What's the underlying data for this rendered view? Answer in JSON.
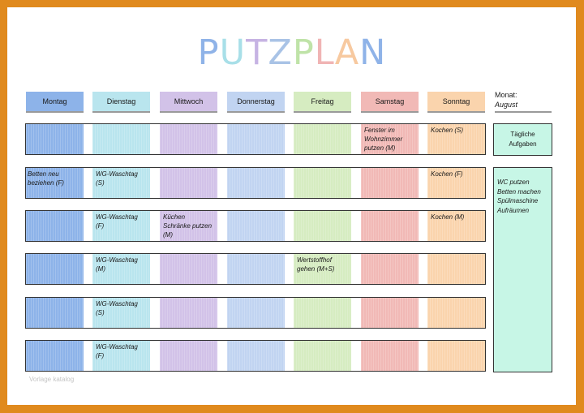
{
  "title": {
    "letters": [
      {
        "ch": "P",
        "color": "#8fb3e8"
      },
      {
        "ch": "U",
        "color": "#a8dfe8"
      },
      {
        "ch": "T",
        "color": "#c6b3e3"
      },
      {
        "ch": "Z",
        "color": "#a9c3e6"
      },
      {
        "ch": "P",
        "color": "#bfe3a8"
      },
      {
        "ch": "L",
        "color": "#f0b4b4"
      },
      {
        "ch": "A",
        "color": "#f7c9a0"
      },
      {
        "ch": "N",
        "color": "#8fb3e8"
      }
    ]
  },
  "days": [
    {
      "label": "Montag",
      "color": "#8db3e9"
    },
    {
      "label": "Dienstag",
      "color": "#b9e5ee"
    },
    {
      "label": "Mittwoch",
      "color": "#d2c2e8"
    },
    {
      "label": "Donnerstag",
      "color": "#c1d4f1"
    },
    {
      "label": "Freitag",
      "color": "#d6ecc1"
    },
    {
      "label": "Samstag",
      "color": "#f1b9b6"
    },
    {
      "label": "Sonntag",
      "color": "#fad4ad"
    }
  ],
  "month": {
    "label": "Monat:",
    "value": "August"
  },
  "rows": [
    {
      "tasks": [
        "",
        "",
        "",
        "",
        "",
        "Fenster im\nWohnzimmer\nputzen (M)",
        "Kochen (S)"
      ]
    },
    {
      "tasks": [
        "Betten neu\nbeziehen (F)",
        "WG-Waschtag\n(S)",
        "",
        "",
        "",
        "",
        "Kochen (F)"
      ]
    },
    {
      "tasks": [
        "",
        "WG-Waschtag\n(F)",
        "Küchen\nSchränke putzen\n(M)",
        "",
        "",
        "",
        "Kochen (M)"
      ]
    },
    {
      "tasks": [
        "",
        "WG-Waschtag\n(M)",
        "",
        "",
        "Wertstoffhof\ngehen (M+S)",
        "",
        ""
      ]
    },
    {
      "tasks": [
        "",
        "WG-Waschtag\n(S)",
        "",
        "",
        "",
        "",
        ""
      ]
    },
    {
      "tasks": [
        "",
        "WG-Waschtag\n(F)",
        "",
        "",
        "",
        "",
        ""
      ]
    }
  ],
  "side": {
    "daily_label": "Tägliche\nAufgaben",
    "daily_tasks": "WC putzen\nBetten machen\nSpülmaschine\nAufräumen"
  },
  "watermark": "Vorlage katalog"
}
